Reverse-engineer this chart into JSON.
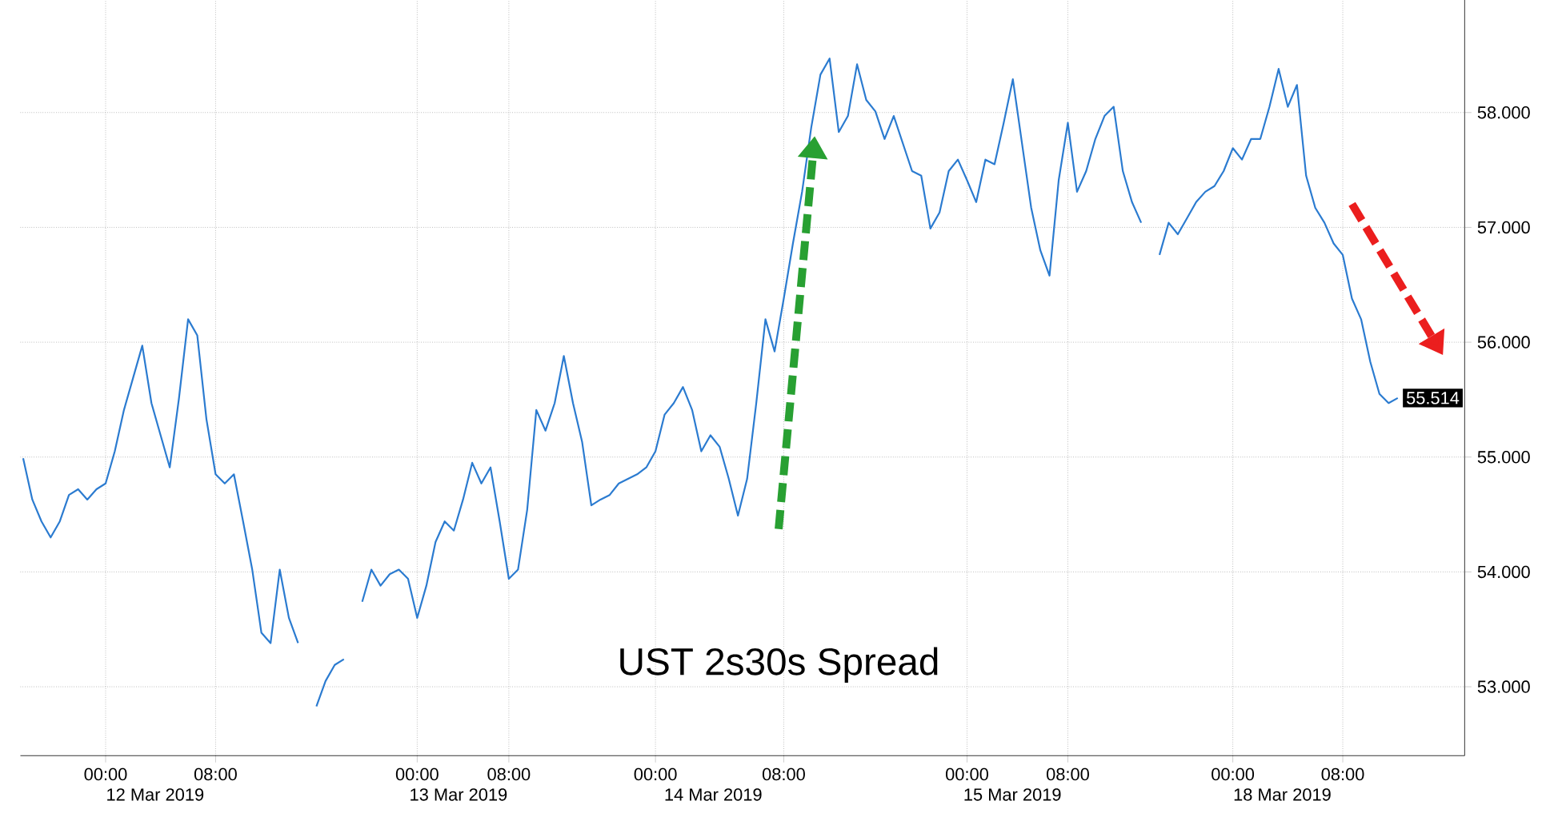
{
  "chart_data": {
    "type": "line",
    "title": "UST 2s30s Spread",
    "color": "#2b7bd0",
    "categories": [
      null,
      null,
      null,
      null,
      null,
      null,
      null,
      null,
      null,
      "00:00",
      null,
      null,
      null,
      null,
      null,
      null,
      null,
      null,
      null,
      null,
      null,
      "08:00",
      null,
      null,
      null,
      null,
      null,
      null,
      null,
      null,
      null,
      null,
      null,
      null,
      null,
      null,
      null,
      null,
      null,
      null,
      null,
      null,
      null,
      "00:00",
      null,
      null,
      null,
      null,
      null,
      null,
      null,
      null,
      null,
      "08:00",
      null,
      null,
      null,
      null,
      null,
      null,
      null,
      null,
      null,
      null,
      null,
      null,
      null,
      null,
      null,
      "00:00",
      null,
      null,
      null,
      null,
      null,
      null,
      null,
      null,
      null,
      null,
      null,
      null,
      null,
      "08:00",
      null,
      null,
      null,
      null,
      null,
      null,
      null,
      null,
      null,
      null,
      null,
      null,
      null,
      null,
      null,
      null,
      null,
      null,
      null,
      "00:00",
      null,
      null,
      null,
      null,
      null,
      null,
      null,
      null,
      null,
      null,
      "08:00",
      null,
      null,
      null,
      null,
      null,
      null,
      null,
      null,
      null,
      null,
      null,
      null,
      null,
      null,
      null,
      null,
      null,
      "00:00",
      null,
      null,
      null,
      null,
      null,
      null,
      null,
      null,
      null,
      null,
      null,
      "08:00",
      null,
      null,
      null,
      null,
      null,
      null
    ],
    "values": [
      54.99,
      54.63,
      54.44,
      54.3,
      54.44,
      54.67,
      54.72,
      54.63,
      54.72,
      54.77,
      55.05,
      55.41,
      55.69,
      55.97,
      55.47,
      55.19,
      54.91,
      55.51,
      56.2,
      56.06,
      55.33,
      54.85,
      54.77,
      54.85,
      54.44,
      54.02,
      53.47,
      53.38,
      54.02,
      53.6,
      53.38,
      null,
      52.83,
      53.05,
      53.19,
      53.24,
      null,
      53.74,
      54.02,
      53.88,
      53.98,
      54.02,
      53.94,
      53.6,
      53.88,
      54.26,
      54.44,
      54.36,
      54.63,
      54.95,
      54.77,
      54.91,
      54.44,
      53.94,
      54.02,
      54.54,
      55.41,
      55.23,
      55.47,
      55.88,
      55.47,
      55.13,
      54.58,
      54.63,
      54.67,
      54.77,
      54.81,
      54.85,
      54.91,
      55.05,
      55.37,
      55.47,
      55.61,
      55.41,
      55.05,
      55.19,
      55.09,
      54.81,
      54.49,
      54.81,
      55.47,
      56.2,
      55.92,
      56.38,
      56.86,
      57.31,
      57.87,
      58.33,
      58.47,
      57.83,
      57.97,
      58.42,
      58.11,
      58.01,
      57.77,
      57.97,
      57.73,
      57.49,
      57.45,
      56.99,
      57.13,
      57.49,
      57.59,
      57.41,
      57.22,
      57.59,
      57.55,
      57.91,
      58.29,
      57.73,
      57.17,
      56.8,
      56.58,
      57.41,
      57.91,
      57.31,
      57.49,
      57.77,
      57.97,
      58.05,
      57.49,
      57.22,
      57.04,
      null,
      56.76,
      57.04,
      56.94,
      57.08,
      57.22,
      57.31,
      57.36,
      57.49,
      57.69,
      57.59,
      57.77,
      57.77,
      58.05,
      58.38,
      58.05,
      58.24,
      57.45,
      57.17,
      57.04,
      56.86,
      56.76,
      56.38,
      56.2,
      55.83,
      55.55,
      55.47,
      55.514
    ],
    "ylim": [
      52.4,
      58.98
    ],
    "yticks": [
      {
        "value": 53,
        "label": "53.000"
      },
      {
        "value": 54,
        "label": "54.000"
      },
      {
        "value": 55,
        "label": "55.000"
      },
      {
        "value": 56,
        "label": "56.000"
      },
      {
        "value": 57,
        "label": "57.000"
      },
      {
        "value": 58,
        "label": "58.000"
      }
    ],
    "grid": true,
    "value_labels": [
      null,
      null,
      null,
      null,
      null,
      null,
      null,
      null,
      null,
      null,
      null,
      null,
      null,
      null,
      null,
      null,
      null,
      null,
      null,
      null,
      null,
      null,
      null,
      null,
      null,
      null,
      null,
      null,
      null,
      null,
      null,
      null,
      null,
      null,
      null,
      null,
      null,
      null,
      null,
      null,
      null,
      null,
      null,
      null,
      null,
      null,
      null,
      null,
      null,
      null,
      null,
      null,
      null,
      null,
      null,
      null,
      null,
      null,
      null,
      null,
      null,
      null,
      null,
      null,
      null,
      null,
      null,
      null,
      null,
      null,
      null,
      null,
      null,
      null,
      null,
      null,
      null,
      null,
      null,
      null,
      null,
      null,
      null,
      null,
      null,
      null,
      null,
      null,
      null,
      null,
      null,
      null,
      null,
      null,
      null,
      null,
      null,
      null,
      null,
      null,
      null,
      null,
      null,
      null,
      null,
      null,
      null,
      null,
      null,
      null,
      null,
      null,
      null,
      null,
      null,
      null,
      null,
      null,
      null,
      null,
      null,
      null,
      null,
      null,
      null,
      null,
      null,
      null,
      null,
      null,
      null,
      null,
      null,
      null,
      null,
      null,
      null,
      null,
      null,
      null,
      null,
      null,
      null,
      null,
      null,
      null,
      null,
      null,
      null,
      null,
      "55.514"
    ],
    "annotations": [
      "12 Mar 2019",
      "13 Mar 2019",
      "14 Mar 2019",
      "15 Mar 2019",
      "18 Mar 2019"
    ]
  }
}
